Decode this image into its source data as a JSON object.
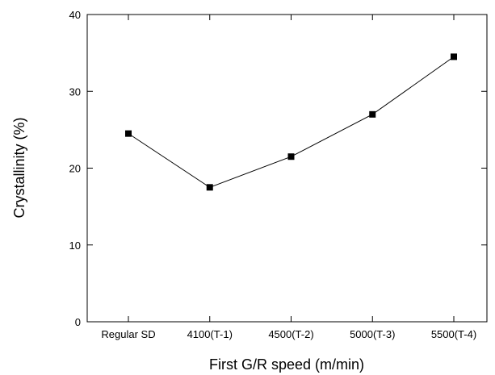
{
  "chart_data": {
    "type": "line",
    "xlabel": "First G/R speed (m/min)",
    "ylabel": "Crystallinity (%)",
    "categories": [
      "Regular SD",
      "4100(T-1)",
      "4500(T-2)",
      "5000(T-3)",
      "5500(T-4)"
    ],
    "series": [
      {
        "values": [
          24.5,
          17.5,
          21.5,
          27.0,
          34.5
        ]
      }
    ],
    "ylim": [
      0,
      40
    ],
    "yticks": [
      0,
      10,
      20,
      30,
      40
    ],
    "grid": false,
    "marker": "square",
    "line_color": "#000000",
    "marker_color": "#000000"
  }
}
